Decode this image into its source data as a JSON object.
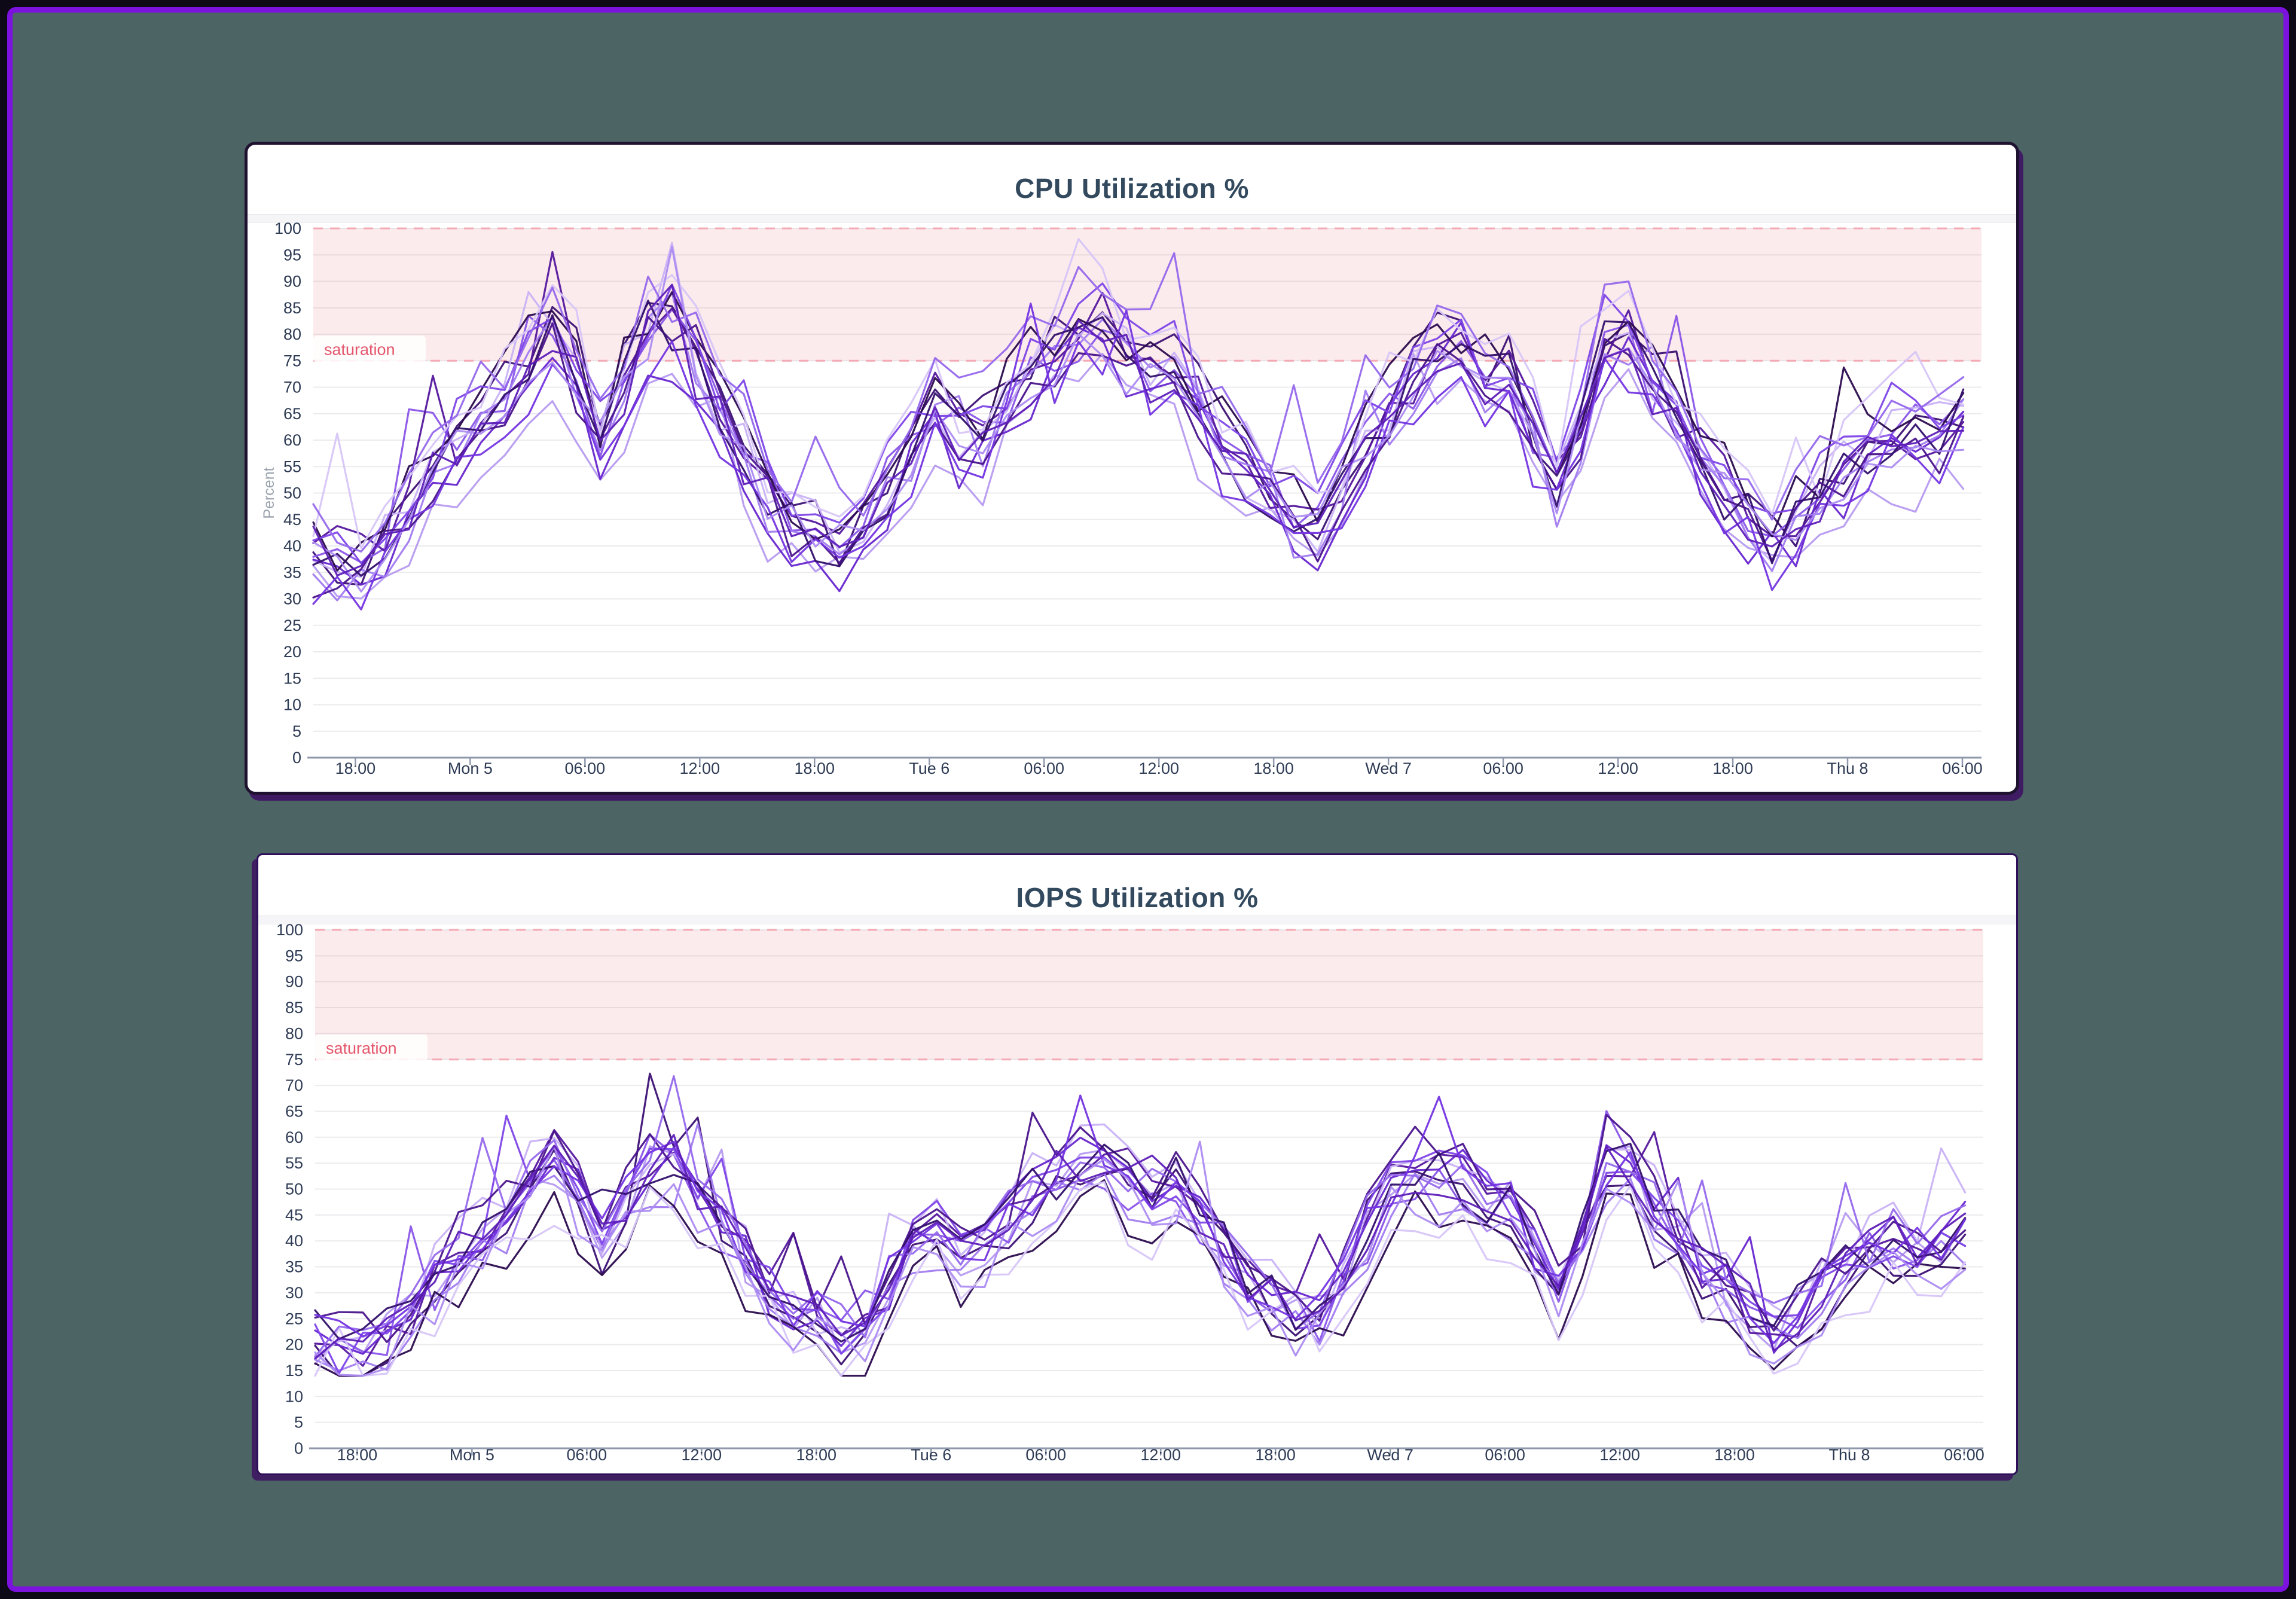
{
  "frame": {
    "border_color": "#7b12dd",
    "background_color": "#4c6464",
    "outer_color": "#0e0916"
  },
  "chart_data": [
    {
      "type": "line",
      "title": "CPU Utilization %",
      "ylabel": "Percent",
      "xlabel": "",
      "legend": "none",
      "grid": true,
      "axis": {
        "y_min": 0,
        "y_max": 100,
        "y_step": 5
      },
      "x_ticks": [
        {
          "h": 0,
          "label": "18:00"
        },
        {
          "h": 6,
          "label": "Mon 5"
        },
        {
          "h": 12,
          "label": "06:00"
        },
        {
          "h": 18,
          "label": "12:00"
        },
        {
          "h": 24,
          "label": "18:00"
        },
        {
          "h": 30,
          "label": "Tue 6"
        },
        {
          "h": 36,
          "label": "06:00"
        },
        {
          "h": 42,
          "label": "12:00"
        },
        {
          "h": 48,
          "label": "18:00"
        },
        {
          "h": 54,
          "label": "Wed 7"
        },
        {
          "h": 60,
          "label": "06:00"
        },
        {
          "h": 66,
          "label": "12:00"
        },
        {
          "h": 72,
          "label": "18:00"
        },
        {
          "h": 78,
          "label": "Thu 8"
        },
        {
          "h": 84,
          "label": "06:00"
        }
      ],
      "x_range": {
        "min_h": -2.2,
        "max_h": 85.0,
        "sample_step_h": 1.25
      },
      "saturation": {
        "label": "saturation",
        "threshold": 75,
        "band_top": 100,
        "band_color": "#fcebec",
        "dash_color": "#f3aab4",
        "text_color": "#e4566b"
      },
      "base_curve": [
        [
          -3,
          39
        ],
        [
          0,
          37
        ],
        [
          1.5,
          41
        ],
        [
          3,
          48
        ],
        [
          4.5,
          56
        ],
        [
          6,
          63
        ],
        [
          7,
          66
        ],
        [
          8,
          70
        ],
        [
          9,
          76
        ],
        [
          10,
          81
        ],
        [
          11,
          83
        ],
        [
          12,
          66
        ],
        [
          13,
          60
        ],
        [
          14,
          72
        ],
        [
          15,
          80
        ],
        [
          16,
          83
        ],
        [
          17,
          80
        ],
        [
          18,
          74
        ],
        [
          19,
          67
        ],
        [
          20,
          60
        ],
        [
          21,
          54
        ],
        [
          22,
          48
        ],
        [
          23,
          45
        ],
        [
          24,
          44
        ],
        [
          25,
          41
        ],
        [
          26,
          40
        ],
        [
          27,
          46
        ],
        [
          28,
          54
        ],
        [
          29,
          60
        ],
        [
          30,
          68
        ],
        [
          31,
          64
        ],
        [
          32,
          58
        ],
        [
          33,
          63
        ],
        [
          34,
          68
        ],
        [
          35,
          72
        ],
        [
          36,
          76
        ],
        [
          37,
          80
        ],
        [
          38,
          82
        ],
        [
          39,
          83
        ],
        [
          40,
          82
        ],
        [
          41,
          66
        ],
        [
          42,
          80
        ],
        [
          43,
          76
        ],
        [
          44,
          68
        ],
        [
          45,
          62
        ],
        [
          46,
          56
        ],
        [
          47,
          52
        ],
        [
          48,
          50
        ],
        [
          49,
          46
        ],
        [
          50,
          43
        ],
        [
          51,
          48
        ],
        [
          52,
          55
        ],
        [
          53,
          62
        ],
        [
          54,
          66
        ],
        [
          55,
          70
        ],
        [
          56,
          74
        ],
        [
          57,
          78
        ],
        [
          58,
          76
        ],
        [
          59,
          72
        ],
        [
          60,
          74
        ],
        [
          61,
          68
        ],
        [
          62,
          56
        ],
        [
          63,
          50
        ],
        [
          64,
          62
        ],
        [
          65,
          78
        ],
        [
          66,
          84
        ],
        [
          67,
          78
        ],
        [
          68,
          70
        ],
        [
          69,
          64
        ],
        [
          70,
          58
        ],
        [
          71,
          54
        ],
        [
          72,
          50
        ],
        [
          73,
          46
        ],
        [
          74,
          42
        ],
        [
          75,
          44
        ],
        [
          76,
          48
        ],
        [
          77,
          52
        ],
        [
          78,
          56
        ],
        [
          79,
          60
        ],
        [
          80,
          63
        ],
        [
          81,
          62
        ],
        [
          82,
          60
        ],
        [
          83,
          62
        ],
        [
          84,
          65
        ],
        [
          85,
          68
        ]
      ],
      "series_gen": {
        "count": 16,
        "seed": 7,
        "offset_amp": 4.5,
        "jitter": 5.5,
        "scale_var": 0.09,
        "spike_p": 0.04,
        "spike_extra": 14,
        "clamp": [
          28,
          98
        ],
        "palette": [
          "#b79bf0",
          "#3d1175",
          "#8a55e8",
          "#55179e",
          "#c9b2f6",
          "#6726cf",
          "#a27cf0",
          "#2b0b4e",
          "#7e45e8",
          "#d7c6f8",
          "#4a148c",
          "#9668ec",
          "#33106b",
          "#7434e2",
          "#ad8cf2",
          "#5e1fb8"
        ]
      }
    },
    {
      "type": "line",
      "title": "IOPS Utilization %",
      "ylabel": "",
      "xlabel": "",
      "legend": "none",
      "grid": true,
      "axis": {
        "y_min": 0,
        "y_max": 100,
        "y_step": 5
      },
      "x_ticks": [
        {
          "h": 0,
          "label": "18:00"
        },
        {
          "h": 6,
          "label": "Mon 5"
        },
        {
          "h": 12,
          "label": "06:00"
        },
        {
          "h": 18,
          "label": "12:00"
        },
        {
          "h": 24,
          "label": "18:00"
        },
        {
          "h": 30,
          "label": "Tue 6"
        },
        {
          "h": 36,
          "label": "06:00"
        },
        {
          "h": 42,
          "label": "12:00"
        },
        {
          "h": 48,
          "label": "18:00"
        },
        {
          "h": 54,
          "label": "Wed 7"
        },
        {
          "h": 60,
          "label": "06:00"
        },
        {
          "h": 66,
          "label": "12:00"
        },
        {
          "h": 72,
          "label": "18:00"
        },
        {
          "h": 78,
          "label": "Thu 8"
        },
        {
          "h": 84,
          "label": "06:00"
        }
      ],
      "x_range": {
        "min_h": -2.2,
        "max_h": 85.0,
        "sample_step_h": 1.25
      },
      "saturation": {
        "label": "saturation",
        "threshold": 75,
        "band_top": 100,
        "band_color": "#fcebec",
        "dash_color": "#f3aab4",
        "text_color": "#e4566b"
      },
      "base_curve": [
        [
          -3,
          21
        ],
        [
          0,
          19
        ],
        [
          1.5,
          22
        ],
        [
          3,
          28
        ],
        [
          4.5,
          35
        ],
        [
          6,
          40
        ],
        [
          7,
          43
        ],
        [
          8,
          46
        ],
        [
          9,
          51
        ],
        [
          10,
          55
        ],
        [
          11,
          57
        ],
        [
          12,
          43
        ],
        [
          13,
          38
        ],
        [
          14,
          48
        ],
        [
          15,
          54
        ],
        [
          16,
          57
        ],
        [
          17,
          54
        ],
        [
          18,
          49
        ],
        [
          19,
          44
        ],
        [
          20,
          38
        ],
        [
          21,
          33
        ],
        [
          22,
          28
        ],
        [
          23,
          26
        ],
        [
          24,
          25
        ],
        [
          25,
          22
        ],
        [
          26,
          21
        ],
        [
          27,
          26
        ],
        [
          28,
          33
        ],
        [
          29,
          38
        ],
        [
          30,
          44
        ],
        [
          31,
          41
        ],
        [
          32,
          36
        ],
        [
          33,
          40
        ],
        [
          34,
          44
        ],
        [
          35,
          48
        ],
        [
          36,
          51
        ],
        [
          37,
          54
        ],
        [
          38,
          56
        ],
        [
          39,
          57
        ],
        [
          40,
          56
        ],
        [
          41,
          43
        ],
        [
          42,
          54
        ],
        [
          43,
          51
        ],
        [
          44,
          44
        ],
        [
          45,
          40
        ],
        [
          46,
          35
        ],
        [
          47,
          31
        ],
        [
          48,
          30
        ],
        [
          49,
          26
        ],
        [
          50,
          24
        ],
        [
          51,
          28
        ],
        [
          52,
          34
        ],
        [
          53,
          44
        ],
        [
          54,
          51
        ],
        [
          55,
          54
        ],
        [
          56,
          53
        ],
        [
          57,
          53
        ],
        [
          58,
          51
        ],
        [
          59,
          48
        ],
        [
          60,
          49
        ],
        [
          61,
          44
        ],
        [
          62,
          35
        ],
        [
          63,
          30
        ],
        [
          64,
          40
        ],
        [
          65,
          53
        ],
        [
          66,
          58
        ],
        [
          67,
          53
        ],
        [
          68,
          46
        ],
        [
          69,
          41
        ],
        [
          70,
          36
        ],
        [
          71,
          33
        ],
        [
          72,
          30
        ],
        [
          73,
          26
        ],
        [
          74,
          23
        ],
        [
          75,
          25
        ],
        [
          76,
          28
        ],
        [
          77,
          31
        ],
        [
          78,
          35
        ],
        [
          79,
          38
        ],
        [
          80,
          40
        ],
        [
          81,
          40
        ],
        [
          82,
          38
        ],
        [
          83,
          40
        ],
        [
          84,
          42
        ],
        [
          85,
          44
        ]
      ],
      "series_gen": {
        "count": 16,
        "seed": 13,
        "offset_amp": 4.5,
        "jitter": 5.0,
        "scale_var": 0.09,
        "spike_p": 0.04,
        "spike_extra": 14,
        "clamp": [
          14,
          77
        ],
        "palette": [
          "#b79bf0",
          "#3d1175",
          "#8a55e8",
          "#55179e",
          "#c9b2f6",
          "#6726cf",
          "#a27cf0",
          "#2b0b4e",
          "#7e45e8",
          "#d7c6f8",
          "#4a148c",
          "#9668ec",
          "#33106b",
          "#7434e2",
          "#ad8cf2",
          "#5e1fb8"
        ]
      }
    }
  ],
  "style": {
    "title_color": "#334a5e",
    "tick_label_color": "#2f3c55",
    "axis_line_color": "#8f98ab",
    "gridline_color": "rgba(60,60,90,0.10)",
    "ylabel_color": "#9aa2ad",
    "sat_badge_bg": "rgba(255,255,255,0.85)"
  }
}
